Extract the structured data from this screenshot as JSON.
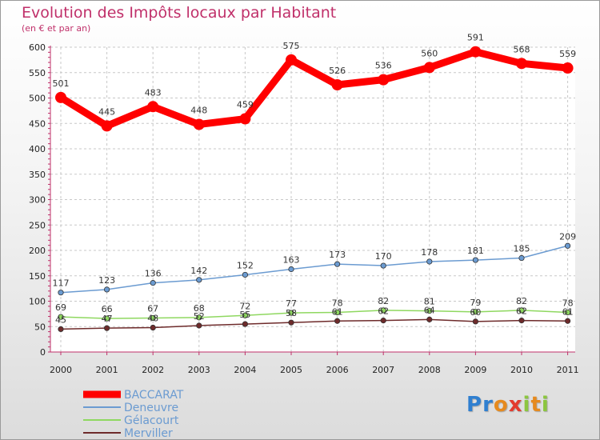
{
  "logo": {
    "text": "Proxiti"
  },
  "chart_data": {
    "type": "line",
    "title": "Evolution des Impôts locaux par Habitant",
    "subtitle": "(en € et par an)",
    "xlabel": "",
    "ylabel": "",
    "ylim": [
      0,
      600
    ],
    "yticks": [
      0,
      50,
      100,
      150,
      200,
      250,
      300,
      350,
      400,
      450,
      500,
      550,
      600
    ],
    "categories": [
      "2000",
      "2001",
      "2002",
      "2003",
      "2004",
      "2005",
      "2006",
      "2007",
      "2008",
      "2009",
      "2010",
      "2011"
    ],
    "series": [
      {
        "name": "BACCARAT",
        "color": "#ff0000",
        "values": [
          501,
          445,
          483,
          448,
          459,
          575,
          526,
          536,
          560,
          591,
          568,
          559
        ]
      },
      {
        "name": "Deneuvre",
        "color": "#6b9bd1",
        "values": [
          117,
          123,
          136,
          142,
          152,
          163,
          173,
          170,
          178,
          181,
          185,
          209
        ]
      },
      {
        "name": "Gélacourt",
        "color": "#8fd860",
        "values": [
          69,
          66,
          67,
          68,
          72,
          77,
          78,
          82,
          81,
          79,
          82,
          78
        ]
      },
      {
        "name": "Merviller",
        "color": "#6e2b2b",
        "values": [
          45,
          47,
          48,
          52,
          55,
          58,
          61,
          62,
          64,
          60,
          62,
          61
        ]
      }
    ]
  }
}
